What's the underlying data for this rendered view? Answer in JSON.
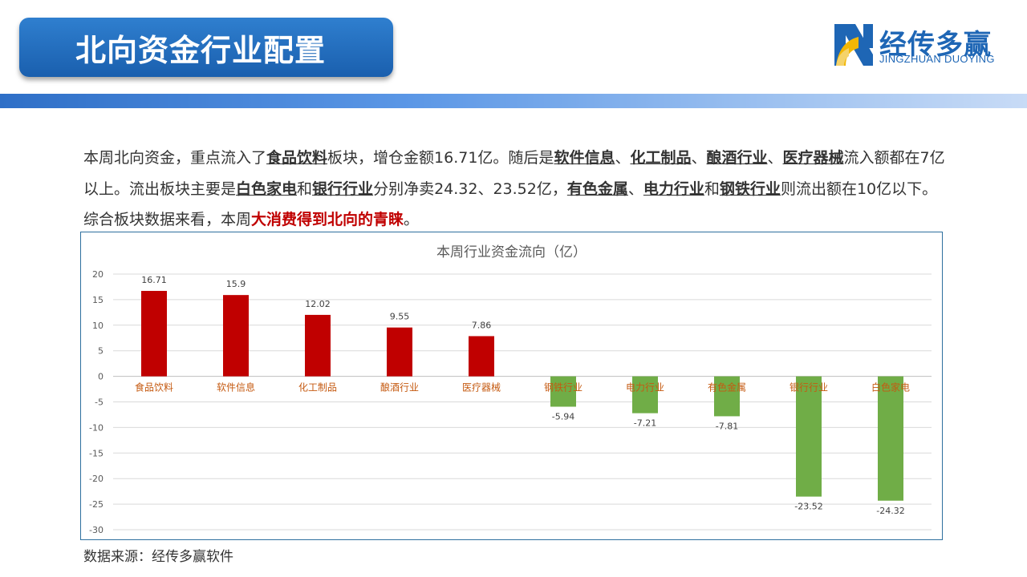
{
  "header": {
    "title": "北向资金行业配置"
  },
  "logo": {
    "name_cn": "经传多赢",
    "name_en": "JINGZHUAN DUOYING"
  },
  "paragraph": [
    {
      "t": "本周北向资金，重点流入了",
      "s": ""
    },
    {
      "t": "食品饮料",
      "s": "b"
    },
    {
      "t": "板块，增仓金额16.71亿。随后是",
      "s": ""
    },
    {
      "t": "软件信息",
      "s": "b"
    },
    {
      "t": "、",
      "s": ""
    },
    {
      "t": "化工制品",
      "s": "b"
    },
    {
      "t": "、",
      "s": ""
    },
    {
      "t": "酿酒行业",
      "s": "b"
    },
    {
      "t": "、",
      "s": ""
    },
    {
      "t": "医疗器械",
      "s": "b"
    },
    {
      "t": "流入额都在7亿以上。流出板块主要是",
      "s": ""
    },
    {
      "t": "白色家电",
      "s": "b"
    },
    {
      "t": "和",
      "s": ""
    },
    {
      "t": "银行行业",
      "s": "b"
    },
    {
      "t": "分别净卖24.32、23.52亿，",
      "s": ""
    },
    {
      "t": "有色金属",
      "s": "b"
    },
    {
      "t": "、",
      "s": ""
    },
    {
      "t": "电力行业",
      "s": "b"
    },
    {
      "t": "和",
      "s": ""
    },
    {
      "t": "钢铁行业",
      "s": "b"
    },
    {
      "t": "则流出额在10亿以下。综合板块数据来看，本周",
      "s": ""
    },
    {
      "t": "大消费得到北向的青睐",
      "s": "red"
    },
    {
      "t": "。",
      "s": ""
    }
  ],
  "chart_data": {
    "type": "bar",
    "title": "本周行业资金流向（亿）",
    "categories": [
      "食品饮料",
      "软件信息",
      "化工制品",
      "酿酒行业",
      "医疗器械",
      "钢铁行业",
      "电力行业",
      "有色金属",
      "银行行业",
      "白色家电"
    ],
    "values": [
      16.71,
      15.9,
      12.02,
      9.55,
      7.86,
      -5.94,
      -7.21,
      -7.81,
      -23.52,
      -24.32
    ],
    "value_labels": [
      "16.71",
      "15.9",
      "12.02",
      "9.55",
      "7.86",
      "-5.94",
      "-7.21",
      "-7.81",
      "-23.52",
      "-24.32"
    ],
    "ylim": [
      -30,
      20
    ],
    "yticks": [
      20,
      15,
      10,
      5,
      0,
      -5,
      -10,
      -15,
      -20,
      -25,
      -30
    ],
    "grid": true,
    "colors": {
      "positive": "#c00000",
      "negative": "#70ad47",
      "category_label": "#c55a11"
    }
  },
  "footer": {
    "source": "数据来源：经传多赢软件"
  }
}
